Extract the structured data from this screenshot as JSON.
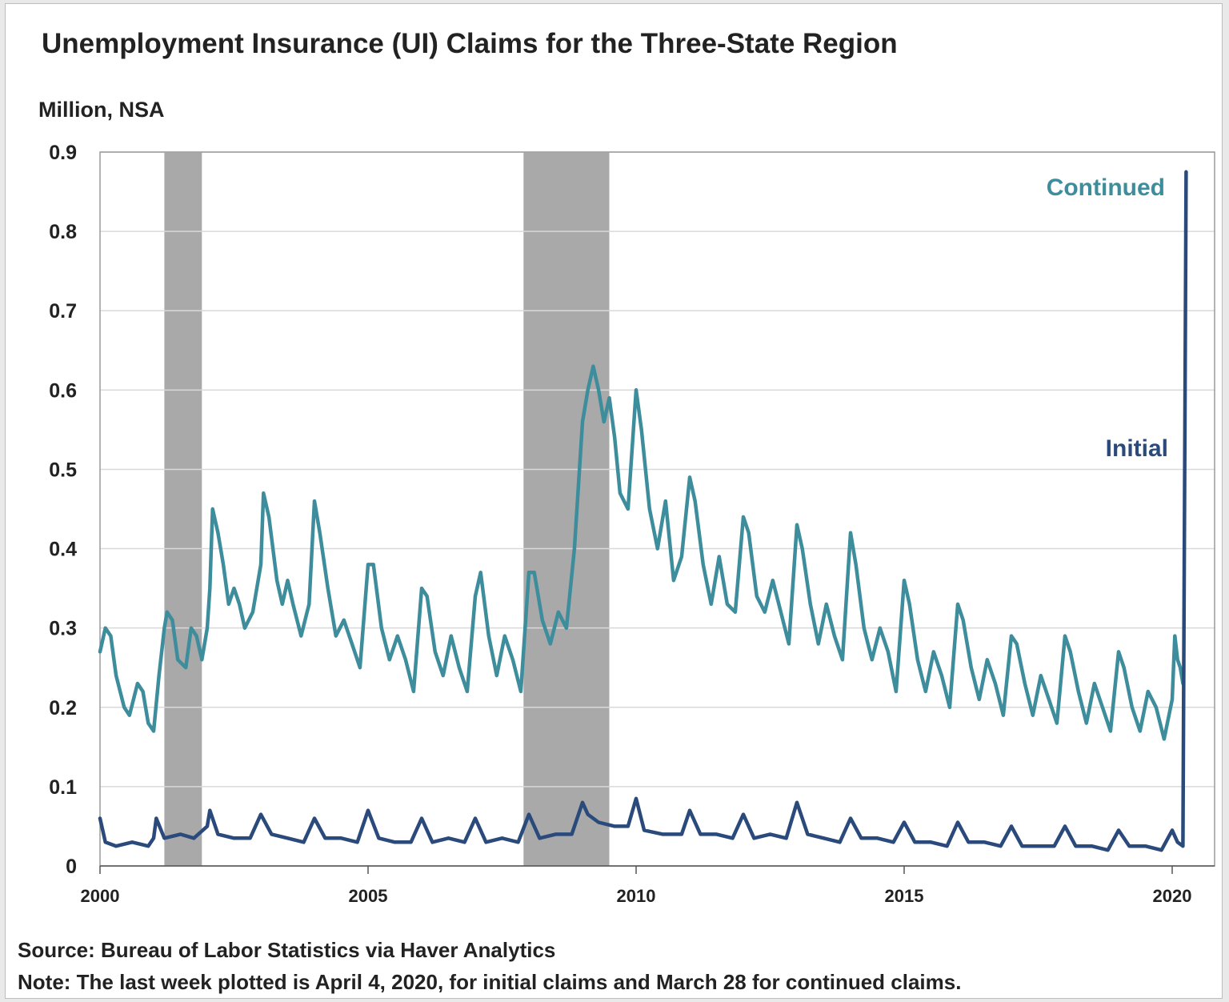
{
  "chart_data": {
    "type": "line",
    "title": "Unemployment Insurance (UI) Claims for the Three-State Region",
    "ylabel": "Million, NSA",
    "xlabel": "",
    "x_range": [
      2000,
      2020.5
    ],
    "ylim": [
      0,
      0.9
    ],
    "y_ticks": [
      "0",
      "0.1",
      "0.2",
      "0.3",
      "0.4",
      "0.5",
      "0.6",
      "0.7",
      "0.8",
      "0.9"
    ],
    "y_tick_values": [
      0,
      0.1,
      0.2,
      0.3,
      0.4,
      0.5,
      0.6,
      0.7,
      0.8,
      0.9
    ],
    "x_ticks": [
      "2000",
      "2005",
      "2010",
      "2015",
      "2020"
    ],
    "x_tick_values": [
      2000,
      2005,
      2010,
      2015,
      2020
    ],
    "grid": "horizontal",
    "recessions": [
      {
        "start": 2001.2,
        "end": 2001.9
      },
      {
        "start": 2007.9,
        "end": 2009.5
      }
    ],
    "series": [
      {
        "name": "Continued",
        "color": "#3d8d9c",
        "points": [
          [
            2000.0,
            0.27
          ],
          [
            2000.1,
            0.3
          ],
          [
            2000.2,
            0.29
          ],
          [
            2000.3,
            0.24
          ],
          [
            2000.45,
            0.2
          ],
          [
            2000.55,
            0.19
          ],
          [
            2000.7,
            0.23
          ],
          [
            2000.8,
            0.22
          ],
          [
            2000.9,
            0.18
          ],
          [
            2001.0,
            0.17
          ],
          [
            2001.1,
            0.24
          ],
          [
            2001.2,
            0.3
          ],
          [
            2001.25,
            0.32
          ],
          [
            2001.35,
            0.31
          ],
          [
            2001.45,
            0.26
          ],
          [
            2001.6,
            0.25
          ],
          [
            2001.7,
            0.3
          ],
          [
            2001.8,
            0.29
          ],
          [
            2001.9,
            0.26
          ],
          [
            2002.0,
            0.3
          ],
          [
            2002.05,
            0.35
          ],
          [
            2002.1,
            0.45
          ],
          [
            2002.2,
            0.42
          ],
          [
            2002.3,
            0.38
          ],
          [
            2002.4,
            0.33
          ],
          [
            2002.5,
            0.35
          ],
          [
            2002.6,
            0.33
          ],
          [
            2002.7,
            0.3
          ],
          [
            2002.85,
            0.32
          ],
          [
            2003.0,
            0.38
          ],
          [
            2003.05,
            0.47
          ],
          [
            2003.15,
            0.44
          ],
          [
            2003.3,
            0.36
          ],
          [
            2003.4,
            0.33
          ],
          [
            2003.5,
            0.36
          ],
          [
            2003.6,
            0.33
          ],
          [
            2003.75,
            0.29
          ],
          [
            2003.9,
            0.33
          ],
          [
            2004.0,
            0.46
          ],
          [
            2004.1,
            0.42
          ],
          [
            2004.25,
            0.35
          ],
          [
            2004.4,
            0.29
          ],
          [
            2004.55,
            0.31
          ],
          [
            2004.7,
            0.28
          ],
          [
            2004.85,
            0.25
          ],
          [
            2005.0,
            0.38
          ],
          [
            2005.1,
            0.38
          ],
          [
            2005.25,
            0.3
          ],
          [
            2005.4,
            0.26
          ],
          [
            2005.55,
            0.29
          ],
          [
            2005.7,
            0.26
          ],
          [
            2005.85,
            0.22
          ],
          [
            2006.0,
            0.35
          ],
          [
            2006.1,
            0.34
          ],
          [
            2006.25,
            0.27
          ],
          [
            2006.4,
            0.24
          ],
          [
            2006.55,
            0.29
          ],
          [
            2006.7,
            0.25
          ],
          [
            2006.85,
            0.22
          ],
          [
            2007.0,
            0.34
          ],
          [
            2007.1,
            0.37
          ],
          [
            2007.25,
            0.29
          ],
          [
            2007.4,
            0.24
          ],
          [
            2007.55,
            0.29
          ],
          [
            2007.7,
            0.26
          ],
          [
            2007.85,
            0.22
          ],
          [
            2008.0,
            0.37
          ],
          [
            2008.1,
            0.37
          ],
          [
            2008.25,
            0.31
          ],
          [
            2008.4,
            0.28
          ],
          [
            2008.55,
            0.32
          ],
          [
            2008.7,
            0.3
          ],
          [
            2008.85,
            0.4
          ],
          [
            2009.0,
            0.56
          ],
          [
            2009.1,
            0.6
          ],
          [
            2009.2,
            0.63
          ],
          [
            2009.3,
            0.6
          ],
          [
            2009.4,
            0.56
          ],
          [
            2009.5,
            0.59
          ],
          [
            2009.6,
            0.54
          ],
          [
            2009.7,
            0.47
          ],
          [
            2009.85,
            0.45
          ],
          [
            2010.0,
            0.6
          ],
          [
            2010.1,
            0.55
          ],
          [
            2010.25,
            0.45
          ],
          [
            2010.4,
            0.4
          ],
          [
            2010.55,
            0.46
          ],
          [
            2010.7,
            0.36
          ],
          [
            2010.85,
            0.39
          ],
          [
            2011.0,
            0.49
          ],
          [
            2011.1,
            0.46
          ],
          [
            2011.25,
            0.38
          ],
          [
            2011.4,
            0.33
          ],
          [
            2011.55,
            0.39
          ],
          [
            2011.7,
            0.33
          ],
          [
            2011.85,
            0.32
          ],
          [
            2012.0,
            0.44
          ],
          [
            2012.1,
            0.42
          ],
          [
            2012.25,
            0.34
          ],
          [
            2012.4,
            0.32
          ],
          [
            2012.55,
            0.36
          ],
          [
            2012.7,
            0.32
          ],
          [
            2012.85,
            0.28
          ],
          [
            2013.0,
            0.43
          ],
          [
            2013.1,
            0.4
          ],
          [
            2013.25,
            0.33
          ],
          [
            2013.4,
            0.28
          ],
          [
            2013.55,
            0.33
          ],
          [
            2013.7,
            0.29
          ],
          [
            2013.85,
            0.26
          ],
          [
            2014.0,
            0.42
          ],
          [
            2014.1,
            0.38
          ],
          [
            2014.25,
            0.3
          ],
          [
            2014.4,
            0.26
          ],
          [
            2014.55,
            0.3
          ],
          [
            2014.7,
            0.27
          ],
          [
            2014.85,
            0.22
          ],
          [
            2015.0,
            0.36
          ],
          [
            2015.1,
            0.33
          ],
          [
            2015.25,
            0.26
          ],
          [
            2015.4,
            0.22
          ],
          [
            2015.55,
            0.27
          ],
          [
            2015.7,
            0.24
          ],
          [
            2015.85,
            0.2
          ],
          [
            2016.0,
            0.33
          ],
          [
            2016.1,
            0.31
          ],
          [
            2016.25,
            0.25
          ],
          [
            2016.4,
            0.21
          ],
          [
            2016.55,
            0.26
          ],
          [
            2016.7,
            0.23
          ],
          [
            2016.85,
            0.19
          ],
          [
            2017.0,
            0.29
          ],
          [
            2017.1,
            0.28
          ],
          [
            2017.25,
            0.23
          ],
          [
            2017.4,
            0.19
          ],
          [
            2017.55,
            0.24
          ],
          [
            2017.7,
            0.21
          ],
          [
            2017.85,
            0.18
          ],
          [
            2018.0,
            0.29
          ],
          [
            2018.1,
            0.27
          ],
          [
            2018.25,
            0.22
          ],
          [
            2018.4,
            0.18
          ],
          [
            2018.55,
            0.23
          ],
          [
            2018.7,
            0.2
          ],
          [
            2018.85,
            0.17
          ],
          [
            2019.0,
            0.27
          ],
          [
            2019.1,
            0.25
          ],
          [
            2019.25,
            0.2
          ],
          [
            2019.4,
            0.17
          ],
          [
            2019.55,
            0.22
          ],
          [
            2019.7,
            0.2
          ],
          [
            2019.85,
            0.16
          ],
          [
            2020.0,
            0.21
          ],
          [
            2020.05,
            0.29
          ],
          [
            2020.1,
            0.26
          ],
          [
            2020.15,
            0.25
          ],
          [
            2020.2,
            0.23
          ]
        ]
      },
      {
        "name": "Initial",
        "color": "#2b4a7c",
        "points": [
          [
            2000.0,
            0.06
          ],
          [
            2000.1,
            0.03
          ],
          [
            2000.3,
            0.025
          ],
          [
            2000.6,
            0.03
          ],
          [
            2000.9,
            0.025
          ],
          [
            2001.0,
            0.035
          ],
          [
            2001.05,
            0.06
          ],
          [
            2001.2,
            0.035
          ],
          [
            2001.5,
            0.04
          ],
          [
            2001.75,
            0.035
          ],
          [
            2002.0,
            0.05
          ],
          [
            2002.05,
            0.07
          ],
          [
            2002.2,
            0.04
          ],
          [
            2002.5,
            0.035
          ],
          [
            2002.8,
            0.035
          ],
          [
            2003.0,
            0.065
          ],
          [
            2003.2,
            0.04
          ],
          [
            2003.5,
            0.035
          ],
          [
            2003.8,
            0.03
          ],
          [
            2004.0,
            0.06
          ],
          [
            2004.2,
            0.035
          ],
          [
            2004.5,
            0.035
          ],
          [
            2004.8,
            0.03
          ],
          [
            2005.0,
            0.07
          ],
          [
            2005.2,
            0.035
          ],
          [
            2005.5,
            0.03
          ],
          [
            2005.8,
            0.03
          ],
          [
            2006.0,
            0.06
          ],
          [
            2006.2,
            0.03
          ],
          [
            2006.5,
            0.035
          ],
          [
            2006.8,
            0.03
          ],
          [
            2007.0,
            0.06
          ],
          [
            2007.2,
            0.03
          ],
          [
            2007.5,
            0.035
          ],
          [
            2007.8,
            0.03
          ],
          [
            2008.0,
            0.065
          ],
          [
            2008.2,
            0.035
          ],
          [
            2008.5,
            0.04
          ],
          [
            2008.8,
            0.04
          ],
          [
            2009.0,
            0.08
          ],
          [
            2009.1,
            0.065
          ],
          [
            2009.3,
            0.055
          ],
          [
            2009.6,
            0.05
          ],
          [
            2009.85,
            0.05
          ],
          [
            2010.0,
            0.085
          ],
          [
            2010.15,
            0.045
          ],
          [
            2010.5,
            0.04
          ],
          [
            2010.85,
            0.04
          ],
          [
            2011.0,
            0.07
          ],
          [
            2011.2,
            0.04
          ],
          [
            2011.5,
            0.04
          ],
          [
            2011.8,
            0.035
          ],
          [
            2012.0,
            0.065
          ],
          [
            2012.2,
            0.035
          ],
          [
            2012.5,
            0.04
          ],
          [
            2012.8,
            0.035
          ],
          [
            2013.0,
            0.08
          ],
          [
            2013.2,
            0.04
          ],
          [
            2013.5,
            0.035
          ],
          [
            2013.8,
            0.03
          ],
          [
            2014.0,
            0.06
          ],
          [
            2014.2,
            0.035
          ],
          [
            2014.5,
            0.035
          ],
          [
            2014.8,
            0.03
          ],
          [
            2015.0,
            0.055
          ],
          [
            2015.2,
            0.03
          ],
          [
            2015.5,
            0.03
          ],
          [
            2015.8,
            0.025
          ],
          [
            2016.0,
            0.055
          ],
          [
            2016.2,
            0.03
          ],
          [
            2016.5,
            0.03
          ],
          [
            2016.8,
            0.025
          ],
          [
            2017.0,
            0.05
          ],
          [
            2017.2,
            0.025
          ],
          [
            2017.5,
            0.025
          ],
          [
            2017.8,
            0.025
          ],
          [
            2018.0,
            0.05
          ],
          [
            2018.2,
            0.025
          ],
          [
            2018.5,
            0.025
          ],
          [
            2018.8,
            0.02
          ],
          [
            2019.0,
            0.045
          ],
          [
            2019.2,
            0.025
          ],
          [
            2019.5,
            0.025
          ],
          [
            2019.8,
            0.02
          ],
          [
            2020.0,
            0.045
          ],
          [
            2020.1,
            0.03
          ],
          [
            2020.2,
            0.025
          ],
          [
            2020.26,
            0.875
          ]
        ]
      }
    ]
  },
  "source_note": "Source: Bureau of Labor Statistics via Haver Analytics",
  "last_week_note": "Note: The last week plotted is April 4, 2020, for initial claims and March 28 for continued claims."
}
